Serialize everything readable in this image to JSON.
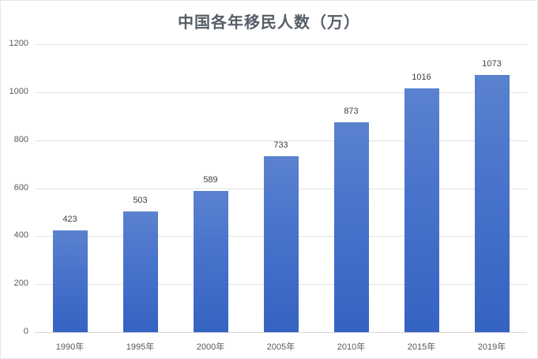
{
  "chart_data": {
    "type": "bar",
    "title": "中国各年移民人数（万）",
    "xlabel": "",
    "ylabel": "",
    "categories": [
      "1990年",
      "1995年",
      "2000年",
      "2005年",
      "2010年",
      "2015年",
      "2019年"
    ],
    "values": [
      423,
      503,
      589,
      733,
      873,
      1016,
      1073
    ],
    "ylim": [
      0,
      1200
    ],
    "yticks": [
      "0",
      "200",
      "400",
      "600",
      "800",
      "1000",
      "1200"
    ],
    "grid": true,
    "legend": null,
    "data_labels": [
      "423",
      "503",
      "589",
      "733",
      "873",
      "1016",
      "1073"
    ],
    "bar_color": "#4472c4"
  }
}
